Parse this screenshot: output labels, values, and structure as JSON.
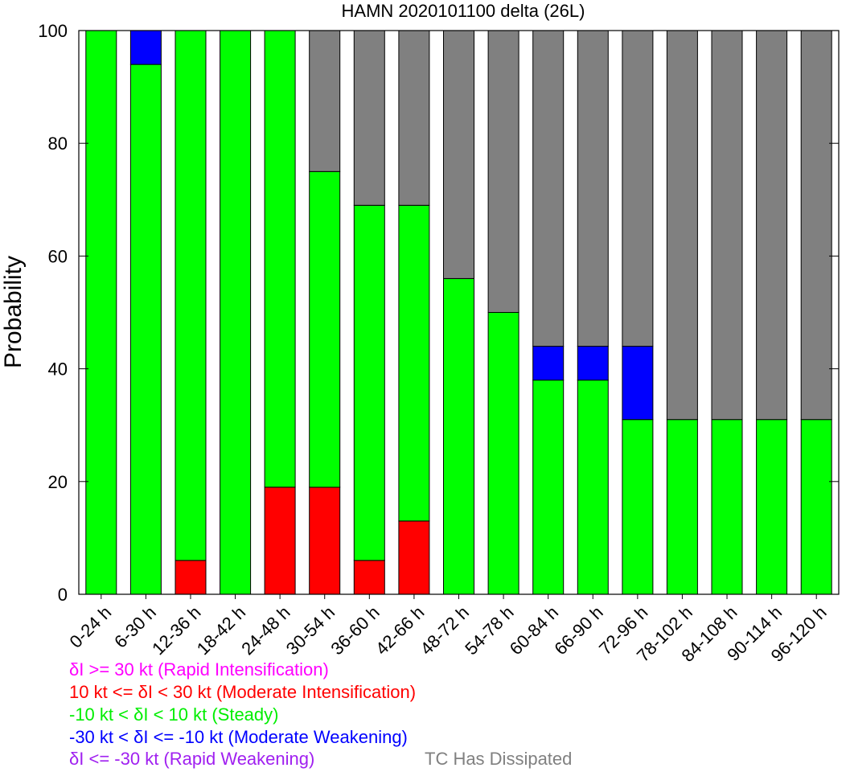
{
  "chart_data": {
    "type": "bar",
    "stacked": true,
    "title": "HAMN 2020101100 delta (26L)",
    "ylabel": "Probability",
    "xlabel": "",
    "ylim": [
      0,
      100
    ],
    "yticks": [
      "0",
      "20",
      "40",
      "60",
      "80",
      "100"
    ],
    "categories": [
      "0-24 h",
      "6-30 h",
      "12-36 h",
      "18-42 h",
      "24-48 h",
      "30-54 h",
      "36-60 h",
      "42-66 h",
      "48-72 h",
      "54-78 h",
      "60-84 h",
      "66-90 h",
      "72-96 h",
      "78-102 h",
      "84-108 h",
      "90-114 h",
      "96-120 h"
    ],
    "series": [
      {
        "key": "ri",
        "color": "#ff00ff",
        "values": [
          0,
          0,
          0,
          0,
          0,
          0,
          0,
          0,
          0,
          0,
          0,
          0,
          0,
          0,
          0,
          0,
          0
        ]
      },
      {
        "key": "mi",
        "color": "#ff0000",
        "values": [
          0,
          0,
          6,
          0,
          19,
          19,
          6,
          13,
          0,
          0,
          0,
          0,
          0,
          0,
          0,
          0,
          0
        ]
      },
      {
        "key": "steady",
        "color": "#00ff00",
        "values": [
          100,
          94,
          94,
          100,
          81,
          56,
          63,
          56,
          56,
          50,
          38,
          38,
          31,
          31,
          31,
          31,
          31
        ]
      },
      {
        "key": "mw",
        "color": "#0000ff",
        "values": [
          0,
          6,
          0,
          0,
          0,
          0,
          0,
          0,
          0,
          0,
          6,
          6,
          13,
          0,
          0,
          0,
          0
        ]
      },
      {
        "key": "rw",
        "color": "#a020f0",
        "values": [
          0,
          0,
          0,
          0,
          0,
          0,
          0,
          0,
          0,
          0,
          0,
          0,
          0,
          0,
          0,
          0,
          0
        ]
      },
      {
        "key": "dissipated",
        "color": "#808080",
        "values": [
          0,
          0,
          0,
          0,
          0,
          25,
          31,
          31,
          44,
          50,
          56,
          56,
          56,
          69,
          69,
          69,
          69
        ]
      }
    ],
    "legend": [
      {
        "text": "δI >= 30 kt (Rapid Intensification)",
        "color": "#ff00ff"
      },
      {
        "text": "10 kt <= δI < 30 kt (Moderate Intensification)",
        "color": "#ff0000"
      },
      {
        "text": "-10 kt < δI < 10 kt (Steady)",
        "color": "#00ee00"
      },
      {
        "text": "-30 kt < δI <= -10 kt (Moderate Weakening)",
        "color": "#0000ff"
      },
      {
        "text": "δI <= -30 kt (Rapid Weakening)",
        "color": "#a020f0"
      },
      {
        "text": "TC Has Dissipated",
        "color": "#808080"
      }
    ]
  }
}
